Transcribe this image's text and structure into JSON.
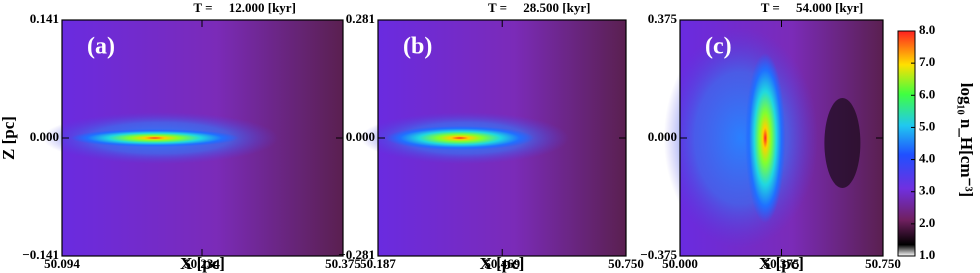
{
  "chart_data": [
    {
      "type": "heatmap",
      "title": "T =     12.000 [kyr]",
      "label": "(a)",
      "xlabel": "X [pc]",
      "ylabel": "Z [pc]",
      "xlim": [
        50.094,
        50.375
      ],
      "xticks": [
        50.094,
        50.234,
        50.375
      ],
      "ylim": [
        -0.141,
        0.141
      ],
      "yticks": [
        {
          "value": -0.141,
          "label": "−0.141"
        },
        {
          "value": 0,
          "label": "0.000"
        },
        0.141
      ]
    },
    {
      "type": "heatmap",
      "title": "T =     28.500 [kyr]",
      "label": "(b)",
      "xlabel": "X [pc]",
      "xlim": [
        50.187,
        50.75
      ],
      "xticks": [
        50.187,
        50.469,
        {
          "value": 50.75,
          "label": "50.750"
        }
      ],
      "ylim": [
        -0.281,
        0.281
      ],
      "yticks": [
        {
          "value": -0.281,
          "label": "−0.281"
        },
        {
          "value": 0,
          "label": "0.000"
        },
        0.281
      ]
    },
    {
      "type": "heatmap",
      "title": "T =     54.000 [kyr]",
      "label": "(c)",
      "xlabel": "X [pc]",
      "xlim": [
        50.0,
        50.75
      ],
      "xticks": [
        {
          "value": 50.0,
          "label": "50.000"
        },
        50.375,
        {
          "value": 50.75,
          "label": "50.750"
        }
      ],
      "ylim": [
        -0.375,
        0.375
      ],
      "yticks": [
        {
          "value": -0.375,
          "label": "−0.375"
        },
        {
          "value": 0,
          "label": "0.000"
        },
        0.375
      ],
      "colorbar": {
        "label": "log₁₀ n_H[cm⁻³]",
        "lim": [
          1.0,
          8.0
        ],
        "ticks": [
          {
            "value": 1,
            "label": "1.0"
          },
          {
            "value": 2,
            "label": "2.0"
          },
          {
            "value": 3,
            "label": "3.0"
          },
          {
            "value": 4,
            "label": "4.0"
          },
          {
            "value": 5,
            "label": "5.0"
          },
          {
            "value": 6,
            "label": "6.0"
          },
          {
            "value": 7,
            "label": "7.0"
          },
          {
            "value": 8,
            "label": "8.0"
          }
        ]
      }
    }
  ]
}
